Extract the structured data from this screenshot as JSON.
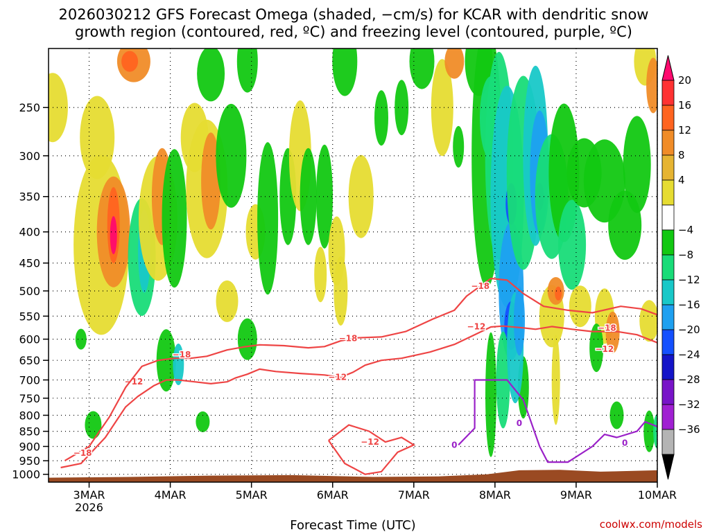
{
  "chart_data": {
    "type": "heatmap",
    "title_line1": "2026030212 GFS Forecast Omega (shaded, −cm/s) for KCAR with dendritic snow",
    "title_line2": "growth region (contoured, red, ºC) and freezing level (contoured, purple, ºC)",
    "xlabel": "Forecast Time (UTC)",
    "ylabel": "",
    "watermark": "coolwx.com/models",
    "x_range_days": [
      -0.5,
      7
    ],
    "x_ticks": [
      {
        "day": 0,
        "label": "3MAR",
        "sublabel": "2026"
      },
      {
        "day": 1,
        "label": "4MAR",
        "sublabel": ""
      },
      {
        "day": 2,
        "label": "5MAR",
        "sublabel": ""
      },
      {
        "day": 3,
        "label": "6MAR",
        "sublabel": ""
      },
      {
        "day": 4,
        "label": "7MAR",
        "sublabel": ""
      },
      {
        "day": 5,
        "label": "8MAR",
        "sublabel": ""
      },
      {
        "day": 6,
        "label": "9MAR",
        "sublabel": ""
      },
      {
        "day": 7,
        "label": "10MAR",
        "sublabel": ""
      }
    ],
    "y_range_hpa": [
      200,
      1030
    ],
    "y_ticks": [
      "250",
      "300",
      "350",
      "400",
      "450",
      "500",
      "550",
      "600",
      "650",
      "700",
      "750",
      "800",
      "850",
      "900",
      "950",
      "1000"
    ],
    "colorbar": {
      "labels": [
        "20",
        "16",
        "12",
        "8",
        "4",
        "−4",
        "−8",
        "−12",
        "−16",
        "−20",
        "−24",
        "−28",
        "−32",
        "−36"
      ],
      "colors": [
        "#ff0a6e",
        "#ff3232",
        "#ff6420",
        "#f08c28",
        "#e6b432",
        "#e6dc32",
        "#ffffff",
        "#12c812",
        "#18dc78",
        "#18c8c8",
        "#1ea0f0",
        "#1450ff",
        "#1414c8",
        "#7814c8",
        "#a020d2",
        "#b4b4b4",
        "#000000"
      ]
    },
    "series": [
      {
        "name": "dendritic growth −12°C",
        "color": "#ee4444",
        "label": "−12",
        "points": [
          [
            -0.35,
            975
          ],
          [
            -0.1,
            960
          ],
          [
            0.2,
            870
          ],
          [
            0.45,
            775
          ],
          [
            0.6,
            745
          ],
          [
            0.8,
            715
          ],
          [
            0.95,
            700
          ],
          [
            1.1,
            700
          ],
          [
            1.3,
            705
          ],
          [
            1.5,
            710
          ],
          [
            1.7,
            705
          ],
          [
            1.8,
            695
          ],
          [
            1.95,
            685
          ],
          [
            2.1,
            672
          ],
          [
            2.3,
            678
          ],
          [
            2.6,
            683
          ],
          [
            2.9,
            687
          ],
          [
            3.1,
            693
          ],
          [
            3.25,
            680
          ],
          [
            3.4,
            662
          ],
          [
            3.6,
            650
          ],
          [
            3.85,
            645
          ],
          [
            4.2,
            630
          ],
          [
            4.5,
            612
          ],
          [
            4.75,
            590
          ],
          [
            4.95,
            573
          ],
          [
            5.1,
            571
          ],
          [
            5.35,
            575
          ],
          [
            5.5,
            578
          ],
          [
            5.7,
            572
          ],
          [
            5.95,
            578
          ],
          [
            6.2,
            583
          ],
          [
            6.5,
            583
          ],
          [
            6.75,
            590
          ],
          [
            7.0,
            608
          ]
        ],
        "labels_at": [
          [
            0.55,
            705
          ],
          [
            3.06,
            693
          ],
          [
            4.77,
            572
          ],
          [
            6.35,
            623
          ]
        ]
      },
      {
        "name": "dendritic growth −18°C",
        "color": "#ee4444",
        "label": "−18",
        "points": [
          [
            -0.3,
            950
          ],
          [
            0.0,
            900
          ],
          [
            0.25,
            805
          ],
          [
            0.45,
            720
          ],
          [
            0.65,
            665
          ],
          [
            0.85,
            650
          ],
          [
            1.05,
            645
          ],
          [
            1.25,
            645
          ],
          [
            1.45,
            640
          ],
          [
            1.7,
            625
          ],
          [
            1.9,
            618
          ],
          [
            2.1,
            613
          ],
          [
            2.4,
            615
          ],
          [
            2.7,
            620
          ],
          [
            2.9,
            617
          ],
          [
            3.1,
            604
          ],
          [
            3.3,
            597
          ],
          [
            3.6,
            595
          ],
          [
            3.9,
            583
          ],
          [
            4.25,
            555
          ],
          [
            4.5,
            538
          ],
          [
            4.65,
            510
          ],
          [
            4.8,
            493
          ],
          [
            4.95,
            477
          ],
          [
            5.15,
            480
          ],
          [
            5.35,
            505
          ],
          [
            5.6,
            530
          ],
          [
            5.9,
            538
          ],
          [
            6.2,
            543
          ],
          [
            6.55,
            530
          ],
          [
            6.8,
            535
          ],
          [
            7.0,
            547
          ]
        ],
        "labels_at": [
          [
            -0.08,
            923
          ],
          [
            1.14,
            636
          ],
          [
            3.19,
            598
          ],
          [
            4.82,
            491
          ],
          [
            6.38,
            575
          ]
        ]
      },
      {
        "name": "freezing level 0°C",
        "color": "#9a20c8",
        "label": "0",
        "points": [
          [
            4.55,
            895
          ],
          [
            4.75,
            840
          ],
          [
            4.75,
            700
          ],
          [
            5.15,
            700
          ],
          [
            5.35,
            755
          ],
          [
            5.55,
            900
          ],
          [
            5.65,
            955
          ],
          [
            5.9,
            955
          ],
          [
            6.2,
            900
          ],
          [
            6.35,
            860
          ],
          [
            6.5,
            870
          ],
          [
            6.75,
            850
          ],
          [
            6.85,
            820
          ],
          [
            7.0,
            835
          ]
        ],
        "labels_at": [
          [
            4.5,
            895
          ],
          [
            5.3,
            825
          ],
          [
            6.6,
            888
          ]
        ]
      }
    ]
  }
}
